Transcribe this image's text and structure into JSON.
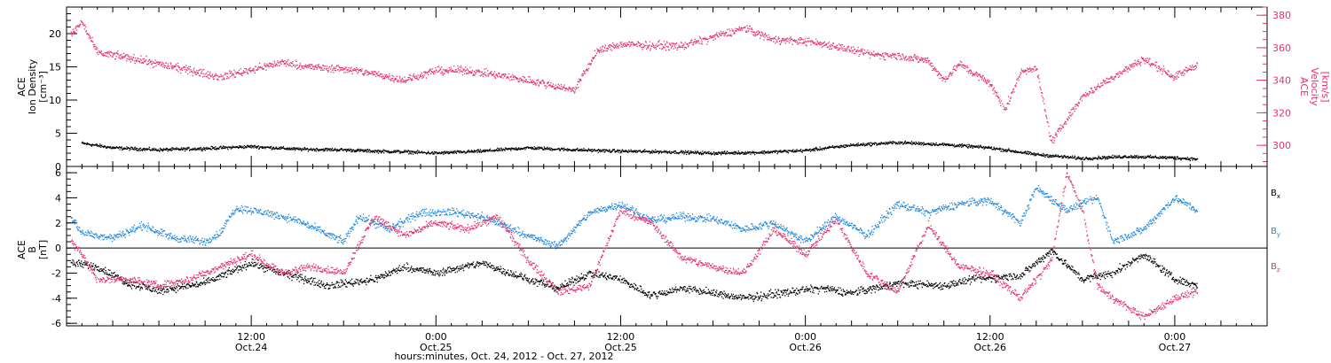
{
  "colors": {
    "black": "#000000",
    "pink": "#e8306a",
    "blue": "#1f87e0"
  },
  "chart_data": [
    {
      "type": "scatter",
      "panel": "top",
      "ylabel_lines": [
        "ACE",
        "Ion Density",
        "[cm⁻³]"
      ],
      "y2label_lines": [
        "ACE",
        "Velocity",
        "[km/s]"
      ],
      "ylim": [
        0,
        24
      ],
      "y2lim": [
        287,
        385
      ],
      "yticks": [
        0,
        5,
        10,
        15,
        20
      ],
      "y2ticks": [
        300,
        320,
        340,
        360,
        380
      ],
      "series": [
        {
          "key": "density",
          "axis": "left",
          "color": "black",
          "x": [
            1,
            3,
            6,
            9,
            12,
            15,
            18,
            20,
            22,
            24,
            27,
            30,
            33,
            36,
            39,
            42,
            45,
            48,
            51,
            54,
            57,
            60,
            63,
            66,
            69,
            72,
            73.5
          ],
          "y": [
            3.5,
            2.8,
            2.5,
            2.7,
            3.0,
            2.6,
            2.5,
            2.3,
            2.2,
            2.0,
            2.3,
            2.8,
            2.5,
            2.3,
            2.2,
            2.0,
            2.1,
            2.4,
            3.2,
            3.6,
            3.3,
            2.8,
            1.8,
            1.2,
            1.5,
            1.3,
            1.1
          ]
        },
        {
          "key": "velocity",
          "axis": "right",
          "color": "pink",
          "x": [
            0.3,
            1,
            2,
            4,
            8,
            10,
            14,
            16,
            18,
            20,
            22,
            24,
            26,
            30,
            33,
            34.5,
            36,
            40,
            44,
            46,
            48,
            50,
            52,
            54,
            56,
            57,
            58,
            60,
            61,
            62,
            63,
            64,
            66,
            68,
            70,
            72,
            73.5
          ],
          "y": [
            368,
            376,
            357,
            354,
            346,
            342,
            351,
            348,
            347,
            344,
            340,
            346,
            346,
            340,
            334,
            358,
            362,
            361,
            372,
            365,
            364,
            361,
            356,
            355,
            352,
            340,
            350,
            338,
            322,
            345,
            348,
            302,
            330,
            342,
            353,
            342,
            350
          ]
        }
      ]
    },
    {
      "type": "scatter",
      "panel": "bottom",
      "ylabel_lines": [
        "ACE",
        "B",
        "[nT]"
      ],
      "ylim": [
        -6.2,
        6.5
      ],
      "yticks": [
        -6,
        -4,
        -2,
        0,
        2,
        4,
        6
      ],
      "zero_line": true,
      "x_ticks": [
        {
          "x": 12,
          "time": "12:00",
          "date": "Oct.24"
        },
        {
          "x": 24,
          "time": "0:00",
          "date": "Oct.25"
        },
        {
          "x": 36,
          "time": "12:00",
          "date": "Oct.25"
        },
        {
          "x": 48,
          "time": "0:00",
          "date": "Oct.26"
        },
        {
          "x": 60,
          "time": "12:00",
          "date": "Oct.26"
        },
        {
          "x": 72,
          "time": "0:00",
          "date": "Oct.27"
        }
      ],
      "xlim": [
        0,
        78
      ],
      "xlabel": "hours:minutes, Oct. 24, 2012 - Oct. 27, 2012",
      "series": [
        {
          "key": "Bx",
          "label": "B",
          "sub": "x",
          "color": "black",
          "x": [
            0.3,
            2,
            4,
            6,
            9,
            12,
            14,
            17,
            20,
            22,
            24,
            27,
            30,
            32,
            34,
            36,
            38,
            40,
            44,
            47,
            49,
            51,
            54,
            57,
            59,
            62,
            64,
            66,
            68,
            70,
            72,
            73.5
          ],
          "y": [
            -1.2,
            -1.5,
            -2.8,
            -3.4,
            -2.8,
            -1.2,
            -2.0,
            -3.0,
            -2.5,
            -1.5,
            -2.0,
            -1.2,
            -2.5,
            -3.2,
            -2.0,
            -2.5,
            -3.8,
            -3.2,
            -4.0,
            -3.5,
            -3.2,
            -3.6,
            -2.8,
            -3.0,
            -2.5,
            -2.2,
            -0.2,
            -2.5,
            -2.0,
            -0.5,
            -2.5,
            -3.0
          ]
        },
        {
          "key": "By",
          "label": "B",
          "sub": "y",
          "color": "blue",
          "x": [
            0.3,
            1,
            3,
            5,
            7,
            9,
            10,
            11,
            13,
            15,
            18,
            19,
            21,
            23,
            25,
            27,
            29,
            31,
            32,
            34,
            36,
            38,
            40,
            42,
            44,
            46,
            48,
            50,
            52,
            54,
            56,
            58,
            60,
            62,
            63,
            65,
            67,
            68,
            70,
            72,
            73.5
          ],
          "y": [
            2.5,
            1.2,
            0.8,
            1.8,
            0.8,
            0.5,
            1.2,
            3.2,
            2.8,
            2.2,
            0.5,
            2.5,
            1.5,
            2.8,
            2.9,
            2.5,
            1.5,
            0.5,
            0.2,
            2.8,
            3.5,
            2.2,
            2.5,
            2.3,
            1.5,
            2.0,
            0.5,
            2.5,
            1.0,
            3.5,
            2.8,
            3.5,
            3.8,
            2.0,
            4.8,
            3.0,
            4.0,
            0.5,
            1.5,
            4.0,
            3.0
          ]
        },
        {
          "key": "Bz",
          "label": "B",
          "sub": "z",
          "color": "pink",
          "x": [
            0.3,
            1,
            2,
            4,
            6,
            8,
            10,
            12,
            14,
            16,
            18,
            20,
            22,
            24,
            26,
            28,
            30,
            32,
            34,
            36,
            38,
            40,
            42,
            44,
            46,
            48,
            50,
            52,
            54,
            56,
            58,
            60,
            62,
            64,
            65,
            66,
            67,
            68,
            70,
            72,
            73.5
          ],
          "y": [
            0.5,
            -0.5,
            -2.5,
            -2.5,
            -3.0,
            -2.5,
            -1.5,
            -0.5,
            -2.0,
            -1.5,
            -2.0,
            2.5,
            1.0,
            2.0,
            1.5,
            2.5,
            -1.0,
            -3.5,
            -3.0,
            3.0,
            2.0,
            -0.8,
            -1.5,
            -2.0,
            1.5,
            -0.5,
            2.2,
            -2.0,
            -3.5,
            1.8,
            -1.5,
            -2.0,
            -4.0,
            -1.0,
            6.0,
            3.0,
            -3.0,
            -4.0,
            -5.5,
            -4.0,
            -3.5
          ]
        }
      ]
    }
  ]
}
